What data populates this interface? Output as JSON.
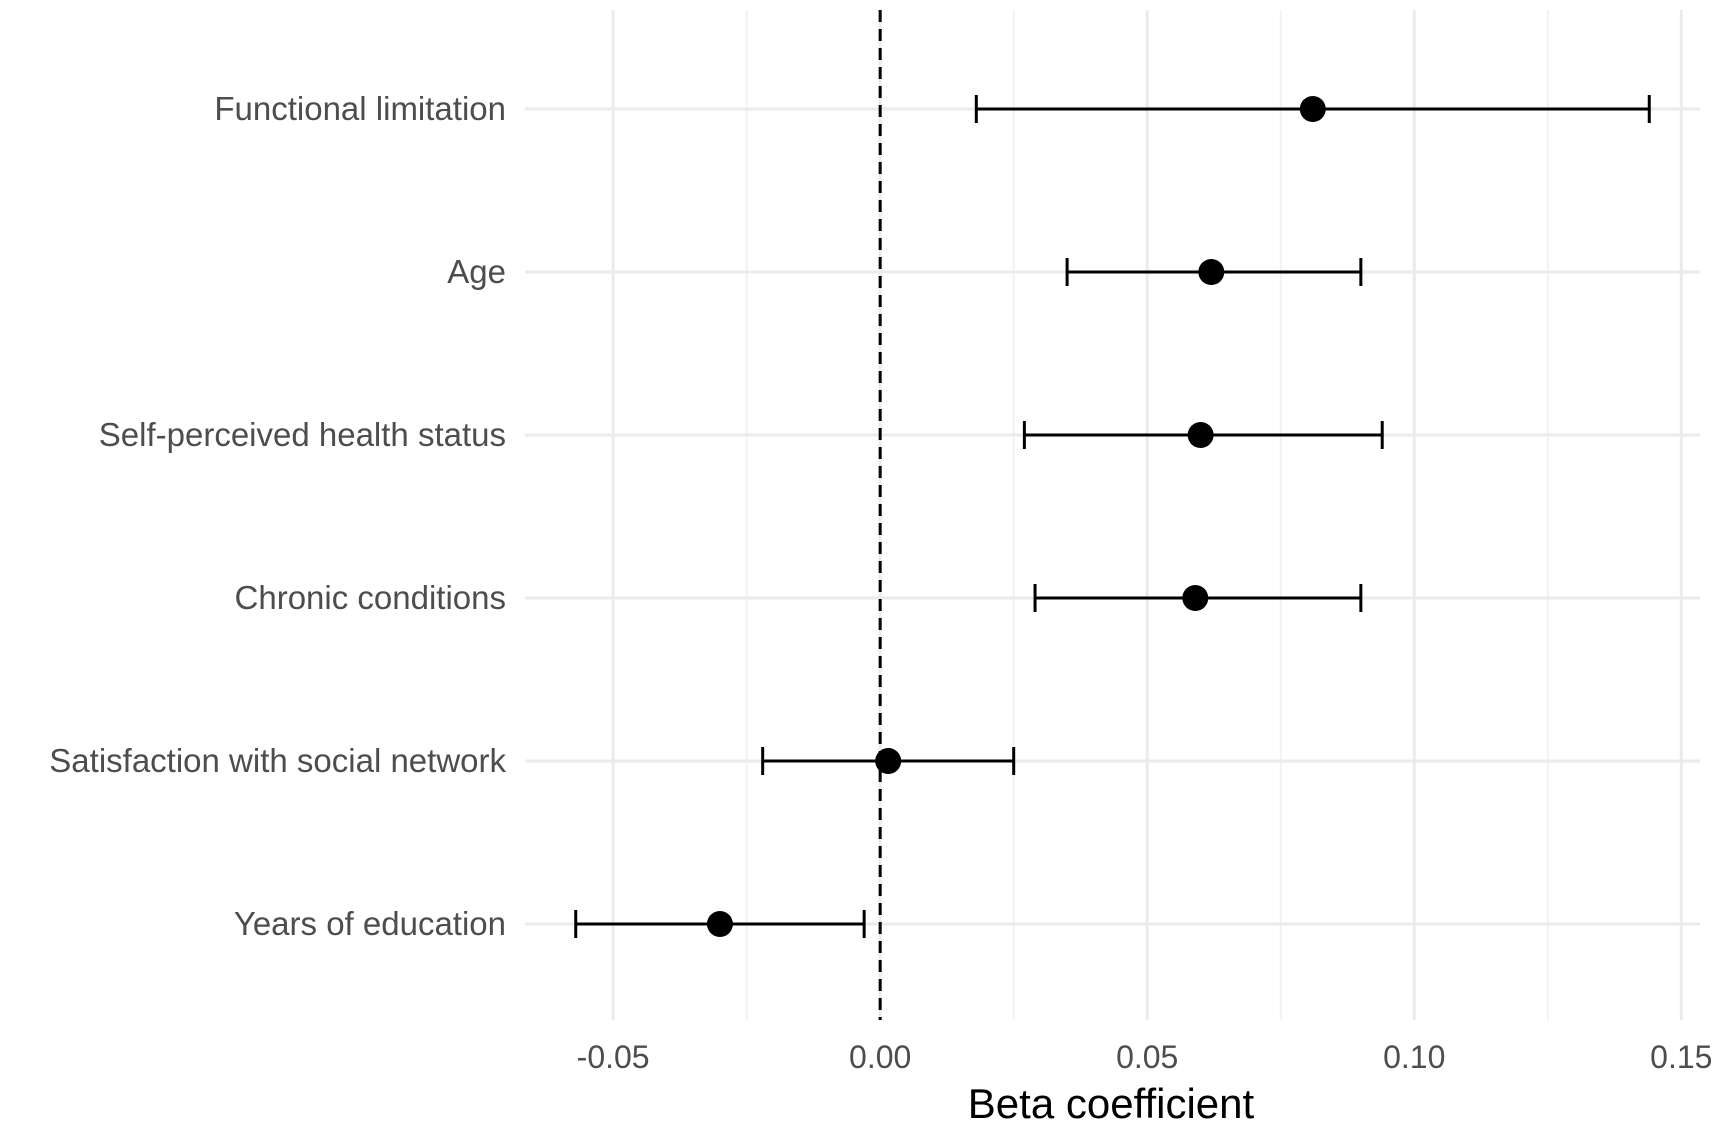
{
  "chart_data": {
    "type": "forest",
    "xlabel": "Beta coefficient",
    "ylabel": "",
    "xlim": [
      -0.0665,
      0.1535
    ],
    "xticks": [
      -0.05,
      0.0,
      0.05,
      0.1,
      0.15
    ],
    "xtick_labels": [
      "-0.05",
      "0.00",
      "0.05",
      "0.10",
      "0.15"
    ],
    "reference_line": 0,
    "grid": true,
    "colors": {
      "point": "#000000",
      "ci": "#000000",
      "grid": "#ebebeb",
      "label": "#4d4d4d"
    },
    "rows": [
      {
        "label": "Functional limitation",
        "estimate": 0.081,
        "lower": 0.018,
        "upper": 0.144
      },
      {
        "label": "Age",
        "estimate": 0.062,
        "lower": 0.035,
        "upper": 0.09
      },
      {
        "label": "Self-perceived health status",
        "estimate": 0.06,
        "lower": 0.027,
        "upper": 0.094
      },
      {
        "label": "Chronic conditions",
        "estimate": 0.059,
        "lower": 0.029,
        "upper": 0.09
      },
      {
        "label": "Satisfaction with social network",
        "estimate": 0.0015,
        "lower": -0.022,
        "upper": 0.025
      },
      {
        "label": "Years of education",
        "estimate": -0.03,
        "lower": -0.057,
        "upper": -0.003
      }
    ]
  }
}
